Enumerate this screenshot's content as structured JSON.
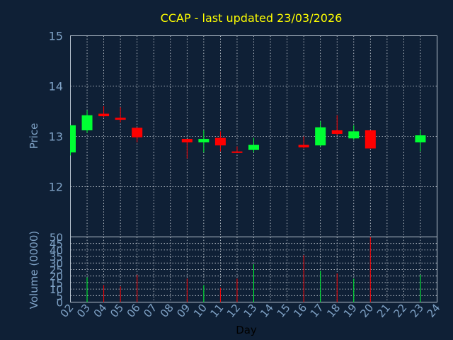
{
  "chart_data": {
    "type": "candlestick",
    "title": "CCAP - last updated 23/03/2026",
    "xlabel": "Day",
    "ylabel_price": "Price",
    "ylabel_volume": "Volume (0000)",
    "price_ylim": [
      11.0,
      15.0
    ],
    "price_ticks": [
      "12",
      "13",
      "14",
      "15"
    ],
    "volume_ylim": [
      0,
      50
    ],
    "volume_ticks": [
      "0",
      "5",
      "10",
      "15",
      "20",
      "25",
      "30",
      "35",
      "40",
      "45",
      "50"
    ],
    "x_ticks": [
      "02",
      "03",
      "04",
      "05",
      "06",
      "07",
      "08",
      "09",
      "10",
      "11",
      "12",
      "13",
      "14",
      "15",
      "16",
      "17",
      "18",
      "19",
      "20",
      "21",
      "22",
      "23",
      "24"
    ],
    "up_color": "#00ff33",
    "down_color": "#ff0000",
    "candles": [
      {
        "day": "02",
        "open": 12.68,
        "high": 13.22,
        "low": 12.62,
        "close": 13.22
      },
      {
        "day": "03",
        "open": 13.12,
        "high": 13.52,
        "low": 13.07,
        "close": 13.42
      },
      {
        "day": "04",
        "open": 13.45,
        "high": 13.6,
        "low": 13.38,
        "close": 13.4
      },
      {
        "day": "05",
        "open": 13.37,
        "high": 13.58,
        "low": 13.28,
        "close": 13.33
      },
      {
        "day": "06",
        "open": 13.17,
        "high": 13.17,
        "low": 12.88,
        "close": 12.98
      },
      {
        "day": "09",
        "open": 12.95,
        "high": 12.95,
        "low": 12.56,
        "close": 12.88
      },
      {
        "day": "10",
        "open": 12.88,
        "high": 13.12,
        "low": 12.68,
        "close": 12.95
      },
      {
        "day": "11",
        "open": 12.97,
        "high": 13.1,
        "low": 12.7,
        "close": 12.82
      },
      {
        "day": "12",
        "open": 12.7,
        "high": 12.8,
        "low": 12.67,
        "close": 12.68
      },
      {
        "day": "13",
        "open": 12.73,
        "high": 12.97,
        "low": 12.68,
        "close": 12.83
      },
      {
        "day": "16",
        "open": 12.83,
        "high": 13.0,
        "low": 12.76,
        "close": 12.78
      },
      {
        "day": "17",
        "open": 12.82,
        "high": 13.3,
        "low": 12.8,
        "close": 13.18
      },
      {
        "day": "18",
        "open": 13.12,
        "high": 13.42,
        "low": 13.02,
        "close": 13.05
      },
      {
        "day": "19",
        "open": 12.96,
        "high": 13.22,
        "low": 12.93,
        "close": 13.1
      },
      {
        "day": "20",
        "open": 13.12,
        "high": 13.12,
        "low": 12.76,
        "close": 12.76
      },
      {
        "day": "23",
        "open": 12.88,
        "high": 13.12,
        "low": 12.7,
        "close": 13.02
      }
    ],
    "volume": [
      {
        "day": "03",
        "value": 19,
        "dir": "up"
      },
      {
        "day": "04",
        "value": 13,
        "dir": "down"
      },
      {
        "day": "05",
        "value": 12,
        "dir": "down"
      },
      {
        "day": "06",
        "value": 21,
        "dir": "down"
      },
      {
        "day": "09",
        "value": 18,
        "dir": "down"
      },
      {
        "day": "10",
        "value": 13,
        "dir": "up"
      },
      {
        "day": "11",
        "value": 11,
        "dir": "down"
      },
      {
        "day": "12",
        "value": 18,
        "dir": "down"
      },
      {
        "day": "13",
        "value": 29,
        "dir": "up"
      },
      {
        "day": "16",
        "value": 36,
        "dir": "down"
      },
      {
        "day": "17",
        "value": 24,
        "dir": "up"
      },
      {
        "day": "18",
        "value": 22,
        "dir": "down"
      },
      {
        "day": "19",
        "value": 18,
        "dir": "up"
      },
      {
        "day": "20",
        "value": 50,
        "dir": "down"
      },
      {
        "day": "23",
        "value": 21,
        "dir": "up"
      }
    ]
  }
}
